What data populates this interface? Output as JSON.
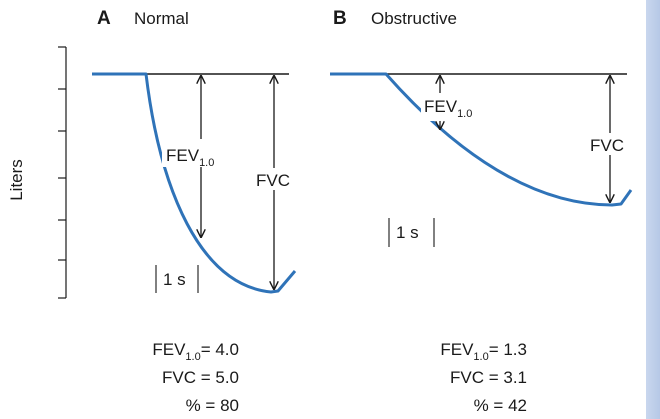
{
  "y_axis_label": "Liters",
  "panel_a": {
    "letter": "A",
    "title": "Normal",
    "fev_label": "FEV",
    "fev_subscript": "1.0",
    "fvc_label": "FVC",
    "time_marker": "1 s",
    "results": {
      "fev_prefix": "FEV",
      "fev_subscript": "1.0",
      "fev_value": "= 4.0",
      "fvc_line": "FVC = 5.0",
      "pct_line": "% = 80"
    }
  },
  "panel_b": {
    "letter": "B",
    "title": "Obstructive",
    "fev_label": "FEV",
    "fev_subscript": "1.0",
    "fvc_label": "FVC",
    "time_marker": "1 s",
    "results": {
      "fev_prefix": "FEV",
      "fev_subscript": "1.0",
      "fev_value": "= 1.3",
      "fvc_line": "FVC = 3.1",
      "pct_line": "% = 42"
    }
  },
  "colors": {
    "curve": "#2f73b8",
    "line": "#1a1a1a",
    "background": "#ffffff",
    "border": "#d6e2f4"
  }
}
